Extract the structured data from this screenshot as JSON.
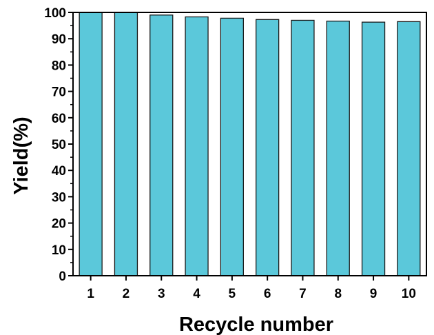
{
  "chart_data": {
    "type": "bar",
    "title": "",
    "xlabel": "Recycle number",
    "ylabel": "Yield(%)",
    "categories": [
      "1",
      "2",
      "3",
      "4",
      "5",
      "6",
      "7",
      "8",
      "9",
      "10"
    ],
    "values": [
      100,
      100,
      99,
      98.3,
      97.8,
      97.3,
      97,
      96.7,
      96.3,
      96.5
    ],
    "ylim": [
      0,
      100
    ],
    "yticks": [
      "0",
      "10",
      "20",
      "30",
      "40",
      "50",
      "60",
      "70",
      "80",
      "90",
      "100"
    ],
    "grid": false,
    "legend": "none",
    "bar_color": "#5bc8da",
    "edge_color": "#1a1a1a"
  }
}
